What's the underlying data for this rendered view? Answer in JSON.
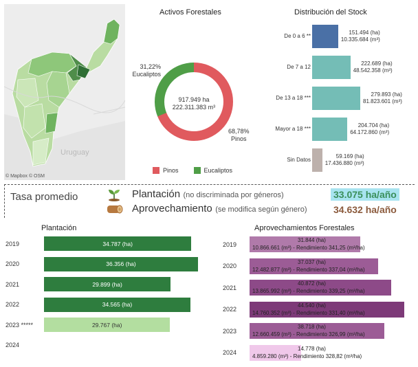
{
  "map": {
    "uruguay_label": "Uruguay",
    "credit": "© Mapbox  © OSM"
  },
  "activos": {
    "title": "Activos Forestales",
    "center_line1": "917.949 ha",
    "center_line2": "222.311.383 m³",
    "eucaliptos_pct": "31,22%",
    "eucaliptos_label": "Eucaliptos",
    "pinos_pct": "68,78%",
    "pinos_label": "Pinos",
    "legend_pinos": "Pinos",
    "legend_eucaliptos": "Eucaliptos",
    "color_pinos": "#e05a5e",
    "color_eucaliptos": "#4f9e47"
  },
  "stock": {
    "title": "Distribución del Stock",
    "rows": [
      {
        "cat": "De 0 a 6 **",
        "ha": "151.494 (ha)",
        "m3": "10.335.684 (m³)",
        "color": "#4a70a6",
        "value": 151494
      },
      {
        "cat": "De 7 a 12",
        "ha": "222.689 (ha)",
        "m3": "48.542.358 (m³)",
        "color": "#74bdb6",
        "value": 222689
      },
      {
        "cat": "De 13 a 18 ***",
        "ha": "279.893 (ha)",
        "m3": "81.823.601 (m³)",
        "color": "#74bdb6",
        "value": 279893
      },
      {
        "cat": "Mayor a 18 ***",
        "ha": "204.704 (ha)",
        "m3": "64.172.860 (m³)",
        "color": "#74bdb6",
        "value": 204704
      },
      {
        "cat": "Sin Datos",
        "ha": "59.169 (ha)",
        "m3": "17.436.880 (m³)",
        "color": "#bdb1ac",
        "value": 59169
      }
    ]
  },
  "tasa": {
    "title": "Tasa promedio",
    "plantacion_label": "Plantación",
    "plantacion_note": "(no discriminada por géneros)",
    "plantacion_value": "33.075 ha/año",
    "aprov_label": "Aprovechamiento",
    "aprov_note": "(se modifica según género)",
    "aprov_value": "34.632 ha/año"
  },
  "plantacion": {
    "title": "Plantación",
    "rows": [
      {
        "year": "2019",
        "label": "34.787 (ha)",
        "value": 34787,
        "color": "#2e7d3e"
      },
      {
        "year": "2020",
        "label": "36.356 (ha)",
        "value": 36356,
        "color": "#2e7d3e"
      },
      {
        "year": "2021",
        "label": "29.899 (ha)",
        "value": 29899,
        "color": "#2e7d3e"
      },
      {
        "year": "2022",
        "label": "34.565 (ha)",
        "value": 34565,
        "color": "#2e7d3e"
      },
      {
        "year": "2023 *****",
        "label": "29.767 (ha)",
        "value": 29767,
        "color": "#b3dea0"
      },
      {
        "year": "2024",
        "label": "",
        "value": 0,
        "color": "#b3dea0"
      }
    ]
  },
  "aprovechamientos": {
    "title": "Aprovechamientos Forestales",
    "rows": [
      {
        "year": "2019",
        "ha": "31.844 (ha)",
        "detail": "10.866.661 (m³) - Rendimiento 341,25 (m³/ha)",
        "value": 31844,
        "color": "#b07aaa"
      },
      {
        "year": "2020",
        "ha": "37.037 (ha)",
        "detail": "12.482.877 (m³) - Rendimiento 337,04 (m³/ha)",
        "value": 37037,
        "color": "#9c5c96"
      },
      {
        "year": "2021",
        "ha": "40.872 (ha)",
        "detail": "13.865.992 (m³) - Rendimiento 339,25 (m³/ha)",
        "value": 40872,
        "color": "#8d4a88"
      },
      {
        "year": "2022",
        "ha": "44.540 (ha)",
        "detail": "14.760.352 (m³) - Rendimiento 331,40 (m³/ha)",
        "value": 44540,
        "color": "#7d3a78"
      },
      {
        "year": "2023",
        "ha": "38.718 (ha)",
        "detail": "12.660.459 (m³) - Rendimiento 326,99 (m³/ha)",
        "value": 38718,
        "color": "#9c5c96"
      },
      {
        "year": "2024",
        "ha": "14.778 (ha)",
        "detail": "4.859.280 (m³) - Rendimiento 328,82 (m³/ha)",
        "value": 14778,
        "color": "#f0c8ea"
      }
    ]
  }
}
